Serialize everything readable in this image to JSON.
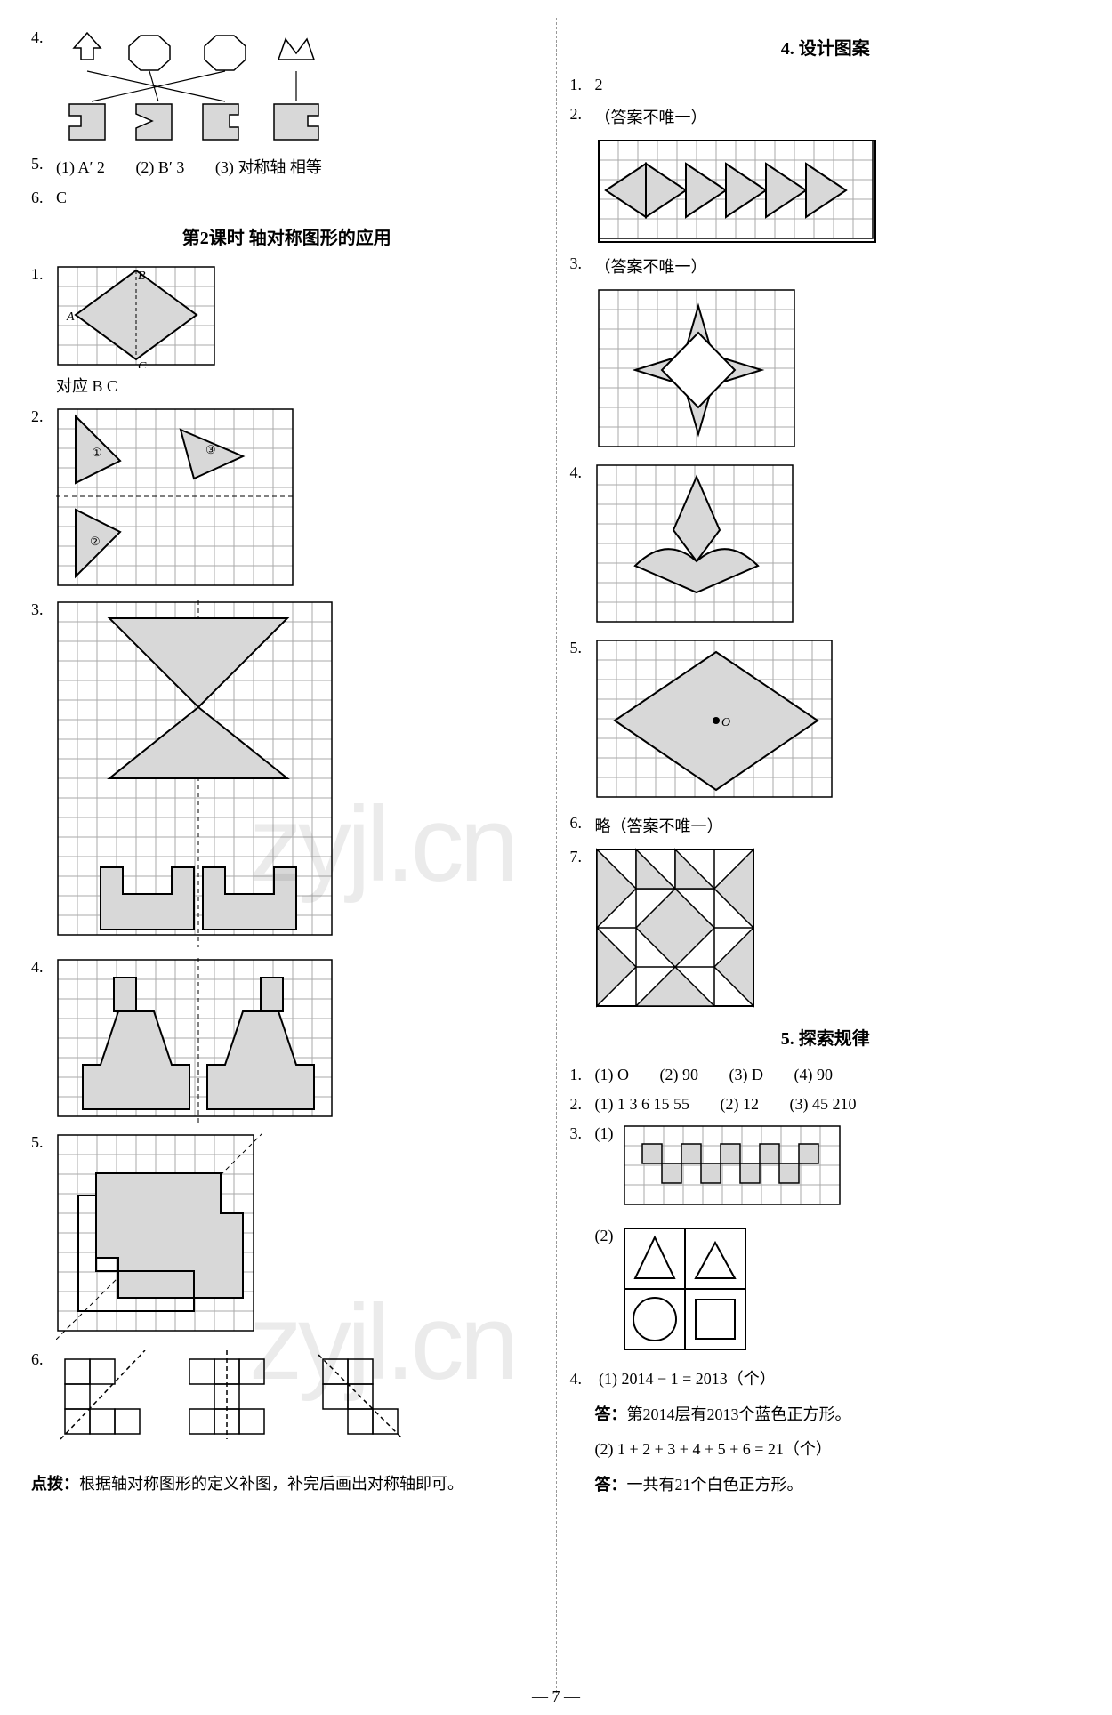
{
  "page_number": "— 7 —",
  "watermark1": "zyjl.cn",
  "watermark2": "zyjl.cn",
  "left": {
    "q4_label": "4.",
    "q4_shapes": {
      "top": [
        "arrow-up",
        "octagon",
        "octagon",
        "crown"
      ],
      "bottom": [
        "puzzle-c-left",
        "puzzle-triangle",
        "puzzle-c-notch",
        "puzzle-c-right"
      ],
      "lines": [
        [
          0,
          2
        ],
        [
          1,
          1
        ],
        [
          2,
          0
        ],
        [
          3,
          3
        ]
      ]
    },
    "q5_label": "5.",
    "q5_parts": [
      "(1) A′  2",
      "(2) B′  3",
      "(3) 对称轴  相等"
    ],
    "q6_label": "6.",
    "q6_answer": "C",
    "section_title": "第2课时  轴对称图形的应用",
    "q1_label": "1.",
    "q1_caption": "对应  B  C",
    "q1_grid": {
      "cols": 8,
      "rows": 5,
      "labels": {
        "A": "A",
        "B": "B",
        "C": "C"
      }
    },
    "q2_label": "2.",
    "q2_grid": {
      "cols": 12,
      "rows": 9
    },
    "q3_label": "3.",
    "q3_grid": {
      "cols": 14,
      "rows": 17
    },
    "q4b_label": "4.",
    "q4b_grid": {
      "cols": 14,
      "rows": 8
    },
    "q5b_label": "5.",
    "q5b_grid": {
      "cols": 10,
      "rows": 10
    },
    "q6b_label": "6.",
    "hint_label": "点拨：",
    "hint_text": "根据轴对称图形的定义补图，补完后画出对称轴即可。"
  },
  "right": {
    "section4_title": "4. 设计图案",
    "q1_label": "1.",
    "q1_answer": "2",
    "q2_label": "2.",
    "q2_paren": "（答案不唯一）",
    "q2_grid": {
      "cols": 14,
      "rows": 5
    },
    "q3_label": "3.",
    "q3_paren": "（答案不唯一）",
    "q3_grid": {
      "cols": 10,
      "rows": 8
    },
    "q4_label": "4.",
    "q4_grid": {
      "cols": 10,
      "rows": 8
    },
    "q5_label": "5.",
    "q5_grid": {
      "cols": 12,
      "rows": 8,
      "O": "O"
    },
    "q6_label": "6.",
    "q6_text": "略（答案不唯一）",
    "q7_label": "7.",
    "q7_grid": {
      "cols": 4,
      "rows": 4
    },
    "section5_title": "5. 探索规律",
    "s5_q1_label": "1.",
    "s5_q1_parts": [
      "(1) O",
      "(2) 90",
      "(3) D",
      "(4) 90"
    ],
    "s5_q2_label": "2.",
    "s5_q2_parts": [
      "(1) 1  3  6  15  55",
      "(2) 12",
      "(3) 45  210"
    ],
    "s5_q3_label": "3.",
    "s5_q3_p1": "(1)",
    "s5_q3_grid": {
      "cols": 11,
      "rows": 4
    },
    "s5_q3_p2": "(2)",
    "s5_q4_label": "4.",
    "s5_q4_a": "(1) 2014 − 1 = 2013（个）",
    "s5_q4_ans_a_label": "答：",
    "s5_q4_ans_a": "第2014层有2013个蓝色正方形。",
    "s5_q4_b": "(2) 1 + 2 + 3 + 4 + 5 + 6 = 21（个）",
    "s5_q4_ans_b_label": "答：",
    "s5_q4_ans_b": "一共有21个白色正方形。"
  },
  "style": {
    "cell": 22,
    "grid_stroke": "#000",
    "fill_gray": "#d8d8d8",
    "fill_mid": "#c8c8c8",
    "line_w": 1,
    "thick_w": 2,
    "dash": "4,4"
  }
}
